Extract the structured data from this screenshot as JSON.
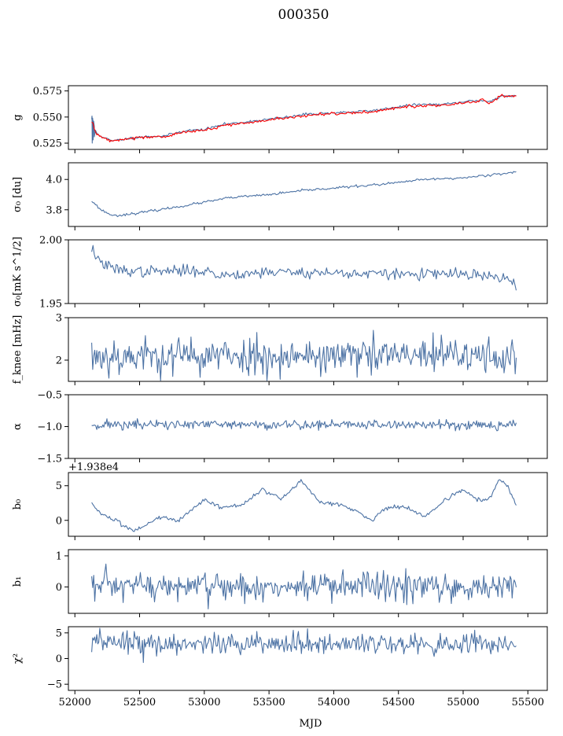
{
  "figure": {
    "title": "000350",
    "xlabel": "MJD"
  },
  "colors": {
    "series": "#4c72a4",
    "model": "#ff0000"
  },
  "chart_data": [
    {
      "type": "line",
      "ylabel": "g",
      "xlim": [
        51950,
        55650
      ],
      "ylim": [
        0.519,
        0.58
      ],
      "yticks": [
        0.525,
        0.55,
        0.575
      ],
      "ytick_labels": [
        "0.525",
        "0.550",
        "0.575"
      ],
      "xticks_labeled": false,
      "generator": "trend",
      "gen": {
        "x_start": 52130,
        "x_end": 55410,
        "n": 330,
        "noise": 0.0006,
        "seed": 11,
        "anchors": [
          [
            52130,
            0.548
          ],
          [
            52170,
            0.534
          ],
          [
            52280,
            0.527
          ],
          [
            52500,
            0.531
          ],
          [
            52700,
            0.532
          ],
          [
            52850,
            0.537
          ],
          [
            53000,
            0.538
          ],
          [
            53150,
            0.543
          ],
          [
            53300,
            0.545
          ],
          [
            53500,
            0.548
          ],
          [
            53650,
            0.55
          ],
          [
            53800,
            0.553
          ],
          [
            54000,
            0.554
          ],
          [
            54150,
            0.555
          ],
          [
            54300,
            0.556
          ],
          [
            54450,
            0.559
          ],
          [
            54650,
            0.562
          ],
          [
            54850,
            0.562
          ],
          [
            55100,
            0.566
          ],
          [
            55200,
            0.565
          ],
          [
            55300,
            0.57
          ],
          [
            55410,
            0.57
          ]
        ],
        "spikes": [
          [
            52132,
            0.551
          ],
          [
            52134,
            0.525
          ],
          [
            52137,
            0.549
          ],
          [
            52141,
            0.528
          ],
          [
            52145,
            0.546
          ],
          [
            52150,
            0.531
          ]
        ]
      },
      "overlay": {
        "color_key": "model",
        "anchors": [
          [
            52130,
            0.546
          ],
          [
            52170,
            0.533
          ],
          [
            52280,
            0.527
          ],
          [
            52500,
            0.531
          ],
          [
            52700,
            0.531
          ],
          [
            52850,
            0.536
          ],
          [
            53000,
            0.537
          ],
          [
            53150,
            0.542
          ],
          [
            53300,
            0.544
          ],
          [
            53500,
            0.547
          ],
          [
            53650,
            0.549
          ],
          [
            53800,
            0.552
          ],
          [
            54000,
            0.553
          ],
          [
            54150,
            0.554
          ],
          [
            54300,
            0.555
          ],
          [
            54450,
            0.558
          ],
          [
            54650,
            0.561
          ],
          [
            54850,
            0.561
          ],
          [
            55100,
            0.565
          ],
          [
            55150,
            0.567
          ],
          [
            55200,
            0.563
          ],
          [
            55300,
            0.571
          ],
          [
            55410,
            0.57
          ]
        ]
      }
    },
    {
      "type": "line",
      "ylabel": "σ₀ [du]",
      "xlim": [
        51950,
        55650
      ],
      "ylim": [
        3.69,
        4.11
      ],
      "yticks": [
        3.8,
        4.0
      ],
      "ytick_labels": [
        "3.8",
        "4.0"
      ],
      "xticks_labeled": false,
      "generator": "trend",
      "gen": {
        "x_start": 52130,
        "x_end": 55410,
        "n": 330,
        "noise": 0.004,
        "seed": 23,
        "anchors": [
          [
            52130,
            3.86
          ],
          [
            52200,
            3.8
          ],
          [
            52300,
            3.76
          ],
          [
            52500,
            3.78
          ],
          [
            52800,
            3.82
          ],
          [
            53000,
            3.85
          ],
          [
            53200,
            3.88
          ],
          [
            53500,
            3.9
          ],
          [
            53800,
            3.93
          ],
          [
            54100,
            3.95
          ],
          [
            54400,
            3.97
          ],
          [
            54700,
            4.0
          ],
          [
            55000,
            4.01
          ],
          [
            55200,
            4.03
          ],
          [
            55410,
            4.05
          ]
        ]
      }
    },
    {
      "type": "line",
      "ylabel": "σ₀[mK s^1/2]",
      "xlim": [
        51950,
        55650
      ],
      "ylim": [
        1.95,
        2.0
      ],
      "yticks": [
        1.95,
        2.0
      ],
      "ytick_labels": [
        "1.95",
        "2.00"
      ],
      "xticks_labeled": false,
      "generator": "trend",
      "gen": {
        "x_start": 52130,
        "x_end": 55410,
        "n": 330,
        "noise": 0.0022,
        "seed": 37,
        "anchors": [
          [
            52130,
            1.993
          ],
          [
            52200,
            1.982
          ],
          [
            52300,
            1.977
          ],
          [
            52500,
            1.975
          ],
          [
            53000,
            1.976
          ],
          [
            53100,
            1.972
          ],
          [
            53500,
            1.975
          ],
          [
            54000,
            1.974
          ],
          [
            54500,
            1.973
          ],
          [
            55000,
            1.973
          ],
          [
            55300,
            1.97
          ],
          [
            55410,
            1.965
          ]
        ]
      }
    },
    {
      "type": "line",
      "ylabel": "f_knee [mHz]",
      "xlim": [
        51950,
        55650
      ],
      "ylim": [
        1.5,
        3.0
      ],
      "yticks": [
        2,
        3
      ],
      "ytick_labels": [
        "2",
        "3"
      ],
      "xticks_labeled": false,
      "generator": "noise",
      "gen": {
        "x_start": 52130,
        "x_end": 55410,
        "n": 420,
        "mean": 2.1,
        "sd": 0.22,
        "seed": 53,
        "clip": [
          1.52,
          3.0
        ]
      }
    },
    {
      "type": "line",
      "ylabel": "α",
      "xlim": [
        51950,
        55650
      ],
      "ylim": [
        -1.5,
        -0.5
      ],
      "yticks": [
        -1.5,
        -1.0,
        -0.5
      ],
      "ytick_labels": [
        "−1.5",
        "−1.0",
        "−0.5"
      ],
      "xticks_labeled": false,
      "generator": "noise",
      "gen": {
        "x_start": 52130,
        "x_end": 55410,
        "n": 420,
        "mean": -0.97,
        "sd": 0.04,
        "seed": 71
      }
    },
    {
      "type": "line",
      "ylabel": "b₀",
      "offset_text": "+1.938e4",
      "xlim": [
        51950,
        55650
      ],
      "ylim": [
        -2.3,
        6.9
      ],
      "yticks": [
        0,
        5
      ],
      "ytick_labels": [
        "0",
        "5"
      ],
      "xticks_labeled": false,
      "generator": "trend",
      "gen": {
        "x_start": 52130,
        "x_end": 55410,
        "n": 360,
        "noise": 0.15,
        "seed": 83,
        "anchors": [
          [
            52130,
            2.5
          ],
          [
            52200,
            1.0
          ],
          [
            52300,
            0.0
          ],
          [
            52450,
            -1.5
          ],
          [
            52500,
            -1.2
          ],
          [
            52650,
            0.5
          ],
          [
            52800,
            0.0
          ],
          [
            53000,
            3.0
          ],
          [
            53150,
            1.8
          ],
          [
            53300,
            2.3
          ],
          [
            53450,
            4.5
          ],
          [
            53600,
            3.0
          ],
          [
            53750,
            5.7
          ],
          [
            53900,
            2.5
          ],
          [
            54000,
            2.5
          ],
          [
            54150,
            1.6
          ],
          [
            54300,
            0.0
          ],
          [
            54400,
            1.8
          ],
          [
            54550,
            2.0
          ],
          [
            54700,
            0.5
          ],
          [
            54900,
            3.5
          ],
          [
            55000,
            4.4
          ],
          [
            55100,
            3.0
          ],
          [
            55200,
            3.0
          ],
          [
            55280,
            6.0
          ],
          [
            55350,
            4.8
          ],
          [
            55410,
            2.0
          ]
        ]
      }
    },
    {
      "type": "line",
      "ylabel": "b₁",
      "xlim": [
        51950,
        55650
      ],
      "ylim": [
        -0.85,
        1.2
      ],
      "yticks": [
        0,
        1
      ],
      "ytick_labels": [
        "0",
        "1"
      ],
      "xticks_labeled": false,
      "generator": "noise",
      "gen": {
        "x_start": 52130,
        "x_end": 55410,
        "n": 420,
        "mean": 0.0,
        "sd": 0.24,
        "seed": 97,
        "clip": [
          -0.78,
          1.1
        ]
      }
    },
    {
      "type": "line",
      "ylabel": "χ²",
      "xlim": [
        51950,
        55650
      ],
      "ylim": [
        -6.2,
        6.2
      ],
      "yticks": [
        -5,
        0,
        5
      ],
      "ytick_labels": [
        "−5",
        "0",
        "5"
      ],
      "xticks": [
        52000,
        52500,
        53000,
        53500,
        54000,
        54500,
        55000,
        55500
      ],
      "xtick_labels": [
        "52000",
        "52500",
        "53000",
        "53500",
        "54000",
        "54500",
        "55000",
        "55500"
      ],
      "xticks_labeled": true,
      "generator": "noise",
      "gen": {
        "x_start": 52130,
        "x_end": 55410,
        "n": 420,
        "mean": 2.9,
        "sd": 1.05,
        "seed": 113
      }
    }
  ]
}
